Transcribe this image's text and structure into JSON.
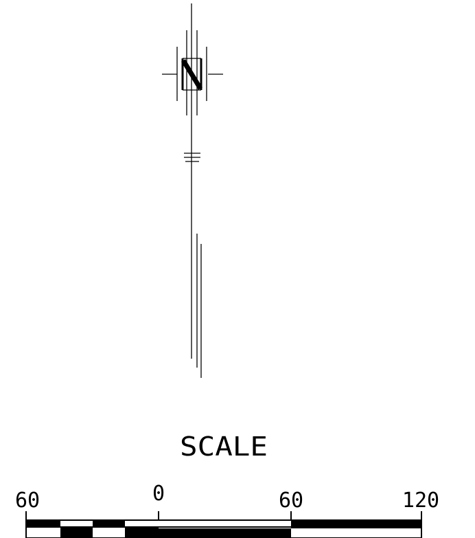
{
  "north_arrow": {
    "letter": "N"
  },
  "scale": {
    "title": "SCALE",
    "ticks": [
      "60",
      "0",
      "60",
      "120"
    ]
  },
  "colors": {
    "ink": "#000000",
    "paper": "#ffffff"
  }
}
